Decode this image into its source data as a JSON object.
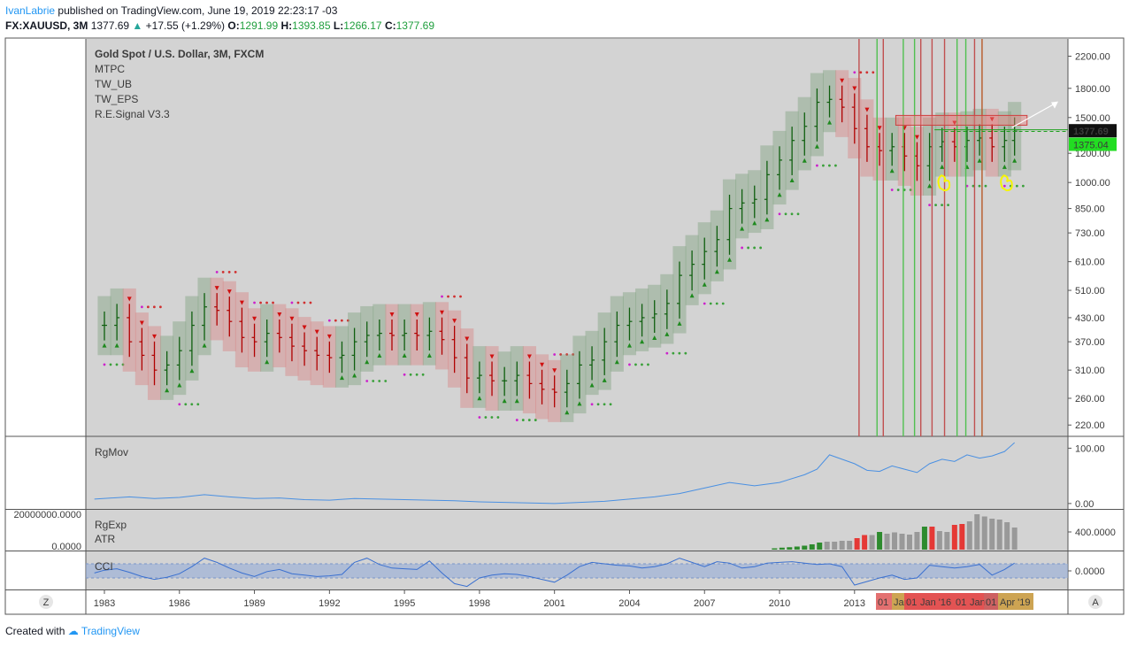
{
  "header": {
    "author": "IvanLabrie",
    "published": "published on TradingView.com, June 19, 2019 22:23:17 -03",
    "symbol": "FX:XAUUSD, 3M",
    "last": "1377.69",
    "change": "+17.55 (+1.29%)",
    "o_label": "O:",
    "o": "1291.99",
    "h_label": "H:",
    "h": "1393.85",
    "l_label": "L:",
    "l": "1266.17",
    "c_label": "C:",
    "c": "1377.69"
  },
  "footer": {
    "created_with": "Created with",
    "brand": "TradingView"
  },
  "nav": {
    "left": "Z",
    "right": "A"
  },
  "chart_data": {
    "type": "line",
    "main": {
      "title": "Gold Spot / U.S. Dollar, 3M, FXCM",
      "indicators": [
        "MTPC",
        "TW_UB",
        "TW_EPS",
        "R.E.Signal V3.3"
      ],
      "y_scale": "log",
      "ylim": [
        205,
        2450
      ],
      "y_ticks": [
        220,
        260,
        310,
        370,
        430,
        510,
        610,
        730,
        850,
        1000,
        1200,
        1500,
        1800,
        2200
      ],
      "y_tick_labels": [
        "220.00",
        "260.00",
        "310.00",
        "370.00",
        "430.00",
        "510.00",
        "610.00",
        "730.00",
        "850.00",
        "1000.00",
        "1200.00",
        "1500.00",
        "1800.00",
        "2200.00"
      ],
      "last_price_label": "1377.69",
      "support_label": "1375.04",
      "x": [
        1983.0,
        1983.5,
        1984.0,
        1984.5,
        1985.0,
        1985.5,
        1986.0,
        1986.5,
        1987.0,
        1987.5,
        1988.0,
        1988.5,
        1989.0,
        1989.5,
        1990.0,
        1990.5,
        1991.0,
        1991.5,
        1992.0,
        1992.5,
        1993.0,
        1993.5,
        1994.0,
        1994.5,
        1995.0,
        1995.5,
        1996.0,
        1996.5,
        1997.0,
        1997.5,
        1998.0,
        1998.5,
        1999.0,
        1999.5,
        2000.0,
        2000.5,
        2001.0,
        2001.5,
        2002.0,
        2002.5,
        2003.0,
        2003.5,
        2004.0,
        2004.5,
        2005.0,
        2005.5,
        2006.0,
        2006.5,
        2007.0,
        2007.5,
        2008.0,
        2008.5,
        2009.0,
        2009.5,
        2010.0,
        2010.5,
        2011.0,
        2011.5,
        2012.0,
        2012.5,
        2013.0,
        2013.5,
        2014.0,
        2014.5,
        2015.0,
        2015.5,
        2016.0,
        2016.5,
        2017.0,
        2017.5,
        2018.0,
        2018.5,
        2019.0,
        2019.4
      ],
      "close": [
        410,
        430,
        370,
        340,
        310,
        320,
        350,
        410,
        460,
        450,
        420,
        380,
        370,
        390,
        380,
        360,
        350,
        340,
        335,
        340,
        370,
        385,
        390,
        385,
        390,
        385,
        395,
        375,
        335,
        295,
        300,
        290,
        290,
        300,
        285,
        275,
        270,
        285,
        320,
        330,
        370,
        410,
        420,
        430,
        440,
        470,
        560,
        600,
        650,
        700,
        850,
        880,
        900,
        1050,
        1150,
        1300,
        1420,
        1650,
        1680,
        1600,
        1400,
        1250,
        1220,
        1250,
        1180,
        1110,
        1250,
        1290,
        1250,
        1300,
        1320,
        1250,
        1300,
        1377.69
      ]
    },
    "rgmov": {
      "label": "RgMov",
      "ylim": [
        -5,
        115
      ],
      "y_ticks": [
        0,
        100
      ],
      "y_tick_labels": [
        "0.00",
        "100.00"
      ],
      "x": [
        1982.6,
        1984,
        1985,
        1986,
        1987,
        1988,
        1989,
        1990,
        1991,
        1992,
        1993,
        1994,
        1995,
        1996,
        1997,
        1998,
        1999,
        2000,
        2001,
        2002,
        2003,
        2004,
        2005,
        2006,
        2007,
        2008,
        2009,
        2010,
        2011,
        2011.5,
        2012,
        2012.5,
        2013,
        2013.5,
        2014,
        2014.5,
        2015,
        2015.5,
        2016,
        2016.5,
        2017,
        2017.5,
        2018,
        2018.5,
        2019,
        2019.4
      ],
      "values": [
        8,
        12,
        9,
        11,
        16,
        12,
        9,
        10,
        7,
        6,
        9,
        8,
        7,
        6,
        5,
        3,
        2,
        1,
        0,
        2,
        4,
        8,
        12,
        18,
        28,
        38,
        32,
        38,
        52,
        62,
        88,
        80,
        72,
        60,
        58,
        68,
        62,
        56,
        72,
        80,
        76,
        88,
        82,
        86,
        94,
        110
      ]
    },
    "rgexp": {
      "labels": [
        "RgExp",
        "ATR"
      ],
      "left_ticks": [
        "20000000.0000",
        "0.0000"
      ],
      "right_ticks": [
        "400.0000"
      ],
      "bars": [
        {
          "x": 2009.8,
          "value": 30,
          "color": "#2e8b2e"
        },
        {
          "x": 2010.1,
          "value": 45,
          "color": "#2e8b2e"
        },
        {
          "x": 2010.4,
          "value": 55,
          "color": "#2e8b2e"
        },
        {
          "x": 2010.7,
          "value": 70,
          "color": "#2e8b2e"
        },
        {
          "x": 2011.0,
          "value": 90,
          "color": "#2e8b2e"
        },
        {
          "x": 2011.3,
          "value": 120,
          "color": "#2e8b2e"
        },
        {
          "x": 2011.6,
          "value": 160,
          "color": "#2e8b2e"
        },
        {
          "x": 2011.9,
          "value": 180,
          "color": "#999999"
        },
        {
          "x": 2012.2,
          "value": 180,
          "color": "#999999"
        },
        {
          "x": 2012.5,
          "value": 200,
          "color": "#999999"
        },
        {
          "x": 2012.8,
          "value": 200,
          "color": "#999999"
        },
        {
          "x": 2013.1,
          "value": 260,
          "color": "#e53935"
        },
        {
          "x": 2013.4,
          "value": 330,
          "color": "#e53935"
        },
        {
          "x": 2013.7,
          "value": 330,
          "color": "#999999"
        },
        {
          "x": 2014.0,
          "value": 400,
          "color": "#2e8b2e"
        },
        {
          "x": 2014.3,
          "value": 360,
          "color": "#999999"
        },
        {
          "x": 2014.6,
          "value": 390,
          "color": "#999999"
        },
        {
          "x": 2014.9,
          "value": 360,
          "color": "#999999"
        },
        {
          "x": 2015.2,
          "value": 340,
          "color": "#999999"
        },
        {
          "x": 2015.5,
          "value": 400,
          "color": "#999999"
        },
        {
          "x": 2015.8,
          "value": 520,
          "color": "#2e8b2e"
        },
        {
          "x": 2016.1,
          "value": 520,
          "color": "#e53935"
        },
        {
          "x": 2016.4,
          "value": 420,
          "color": "#999999"
        },
        {
          "x": 2016.7,
          "value": 400,
          "color": "#999999"
        },
        {
          "x": 2017.0,
          "value": 560,
          "color": "#e53935"
        },
        {
          "x": 2017.3,
          "value": 580,
          "color": "#e53935"
        },
        {
          "x": 2017.6,
          "value": 640,
          "color": "#999999"
        },
        {
          "x": 2017.9,
          "value": 800,
          "color": "#999999"
        },
        {
          "x": 2018.2,
          "value": 750,
          "color": "#999999"
        },
        {
          "x": 2018.5,
          "value": 700,
          "color": "#999999"
        },
        {
          "x": 2018.8,
          "value": 680,
          "color": "#999999"
        },
        {
          "x": 2019.1,
          "value": 620,
          "color": "#999999"
        },
        {
          "x": 2019.4,
          "value": 500,
          "color": "#999999"
        }
      ]
    },
    "cci": {
      "label": "CCI",
      "y_ticks": [
        0
      ],
      "y_tick_labels": [
        "0.0000"
      ],
      "ylim": [
        -250,
        250
      ],
      "x": [
        1982.6,
        1983,
        1983.5,
        1984,
        1984.5,
        1985,
        1985.5,
        1986,
        1986.5,
        1987,
        1987.5,
        1988,
        1988.5,
        1989,
        1989.5,
        1990,
        1990.5,
        1991,
        1991.5,
        1992,
        1992.5,
        1993,
        1993.5,
        1994,
        1994.5,
        1995,
        1995.5,
        1996,
        1996.5,
        1997,
        1997.5,
        1998,
        1998.5,
        1999,
        1999.5,
        2000,
        2000.5,
        2001,
        2001.5,
        2002,
        2002.5,
        2003,
        2003.5,
        2004,
        2004.5,
        2005,
        2005.5,
        2006,
        2006.5,
        2007,
        2007.5,
        2008,
        2008.5,
        2009,
        2009.5,
        2010,
        2010.5,
        2011,
        2011.5,
        2012,
        2012.5,
        2013,
        2013.5,
        2014,
        2014.5,
        2015,
        2015.5,
        2016,
        2016.5,
        2017,
        2017.5,
        2018,
        2018.5,
        2019,
        2019.4
      ],
      "values": [
        -30,
        10,
        30,
        -20,
        -80,
        -120,
        -90,
        -40,
        60,
        180,
        120,
        40,
        -30,
        -80,
        -10,
        20,
        -40,
        -60,
        -80,
        -70,
        -50,
        120,
        180,
        90,
        40,
        30,
        20,
        140,
        -30,
        -180,
        -220,
        -100,
        -60,
        -40,
        -50,
        -80,
        -120,
        -160,
        -60,
        60,
        120,
        100,
        80,
        70,
        40,
        60,
        100,
        180,
        120,
        60,
        130,
        110,
        40,
        60,
        110,
        120,
        130,
        110,
        90,
        100,
        60,
        -200,
        -150,
        -100,
        -60,
        -120,
        -100,
        80,
        60,
        40,
        60,
        90,
        -60,
        20,
        110
      ]
    },
    "x_axis": {
      "ticks": [
        1983,
        1986,
        1989,
        1992,
        1995,
        1998,
        2001,
        2004,
        2007,
        2010,
        2013
      ],
      "tick_labels": [
        "1983",
        "1986",
        "1989",
        "1992",
        "1995",
        "1998",
        "2001",
        "2004",
        "2007",
        "2010",
        "2013"
      ],
      "event_labels": [
        "01",
        "Jan",
        "01",
        "Jan '16",
        "01",
        "Jan",
        "01",
        "Apr '19"
      ]
    }
  }
}
